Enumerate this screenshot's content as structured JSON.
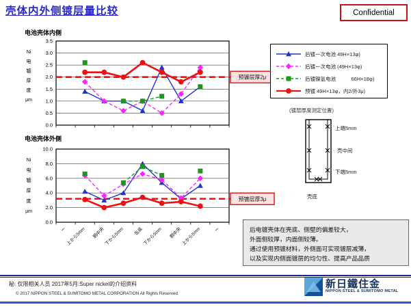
{
  "header": {
    "title": "壳体内外侧镀层量比较",
    "confidential_label": "Confidential"
  },
  "chart_data": [
    {
      "type": "line",
      "title": "电池壳体内侧",
      "ylabel": "Ni电镀厚度 μm",
      "ylim": [
        0,
        3.5
      ],
      "ytick_step": 0.5,
      "grid": true,
      "x_labels_visible": false,
      "categories": [
        "ー",
        "上から5mm",
        "胴中央",
        "下から5mm",
        "缶底",
        "下から5mm",
        "胴中央",
        "上から5mm",
        "ー"
      ],
      "series": [
        {
          "name": "后镀一次电池 49H×13φ)",
          "color": "#2233cc",
          "marker": "triangle",
          "line": "solid",
          "width": 1.4,
          "values": [
            null,
            1.4,
            1.0,
            1.0,
            0.6,
            2.4,
            1.0,
            1.6,
            null
          ]
        },
        {
          "name": "后镀一次电池 (49H×13φ)",
          "color": "#ff22ff",
          "marker": "diamond",
          "line": "dashed",
          "width": 1.4,
          "values": [
            null,
            1.8,
            1.0,
            0.6,
            1.0,
            0.5,
            1.3,
            2.4,
            null
          ]
        },
        {
          "name": "后镀镍氢电池 66H×18φ)",
          "color": "#1a9a1a",
          "marker": "square",
          "line": "dashed",
          "width": 1.4,
          "values": [
            null,
            2.6,
            null,
            1.0,
            1.0,
            1.2,
            null,
            1.6,
            null
          ]
        },
        {
          "name": "预镀 49H×13φ，内2/外3μ)",
          "color": "#ee1111",
          "marker": "circle",
          "line": "solid",
          "width": 2.6,
          "values": [
            null,
            2.2,
            2.2,
            2.0,
            2.6,
            2.2,
            1.8,
            2.2,
            null
          ]
        }
      ],
      "ref_line": {
        "value": 2.0,
        "label": "预镀层厚2μ"
      }
    },
    {
      "type": "line",
      "title": "电池壳体外侧",
      "ylabel": "Ni电镀厚度 μm",
      "ylim": [
        0,
        10
      ],
      "ytick_step": 2,
      "grid": true,
      "x_labels_visible": true,
      "categories": [
        "ー",
        "上から5mm",
        "胴中央",
        "下から5mm",
        "缶底",
        "下から5mm",
        "胴中央",
        "上から5mm",
        "ー"
      ],
      "series": [
        {
          "name": "后镀一次电池 49H×13φ)",
          "color": "#2233cc",
          "marker": "triangle",
          "line": "solid",
          "width": 1.4,
          "values": [
            null,
            4.2,
            3.0,
            4.0,
            8.0,
            5.4,
            3.2,
            5.0,
            null
          ]
        },
        {
          "name": "后镀一次电池 (49H×13φ)",
          "color": "#ff22ff",
          "marker": "diamond",
          "line": "dashed",
          "width": 1.4,
          "values": [
            null,
            6.4,
            3.6,
            5.2,
            6.6,
            5.8,
            3.3,
            6.0,
            null
          ]
        },
        {
          "name": "后镀镍氢电池 66H×18φ)",
          "color": "#1a9a1a",
          "marker": "square",
          "line": "dashed",
          "width": 1.4,
          "values": [
            null,
            6.6,
            null,
            5.4,
            7.6,
            6.4,
            null,
            7.0,
            null
          ]
        },
        {
          "name": "预镀 49H×13φ，内2/外3μ)",
          "color": "#ee1111",
          "marker": "circle",
          "line": "solid",
          "width": 2.6,
          "values": [
            null,
            3.1,
            2.0,
            2.6,
            3.4,
            2.6,
            2.8,
            2.2,
            null
          ]
        }
      ],
      "ref_line": {
        "value": 3.2,
        "label": "预镀层厚3μ"
      }
    }
  ],
  "legend": {
    "items": [
      "后镀一次电池 49H×13φ)",
      "后镀一次电池 (49H×13φ)",
      "后镀镍氢电池　　　66H×18φ)",
      "预镀 49H×13φ，内2/外3μ)"
    ]
  },
  "measurement": {
    "caption": "(镀层厚度测定位置)",
    "top_label": "上端5mm",
    "middle_label": "壳中间",
    "bottom_label": "下端5mm",
    "base_label": "壳底"
  },
  "note_box": {
    "lines": [
      "后电镀壳体在壳底、侧壁的偏差较大，",
      "外面侧较厚，内面侧较薄。",
      "通过使用预镀材料，外侧面可实现镀层减薄，",
      "以及实现内侧面镀层的均匀性、提高产品品质"
    ]
  },
  "footer": {
    "classification": "秘: 仅限相关人员 2017年5月:Super nickel的介绍资料",
    "copyright": "© 2017 NIPPON STEEL & SUMITOMO METAL CORPORATION All Rights Reserved.",
    "logo_name": "新日鐵住金",
    "logo_subtitle": "NIPPON STEEL & SUMITOMO METAL"
  },
  "colors": {
    "title_blue": "#2a2ac8",
    "confidential_border": "#c11414",
    "ref_line_red": "#ee1111",
    "logo_navy": "#16335e",
    "logo_light_blue": "#5aa7d9",
    "logo_dark_blue": "#14509c"
  }
}
